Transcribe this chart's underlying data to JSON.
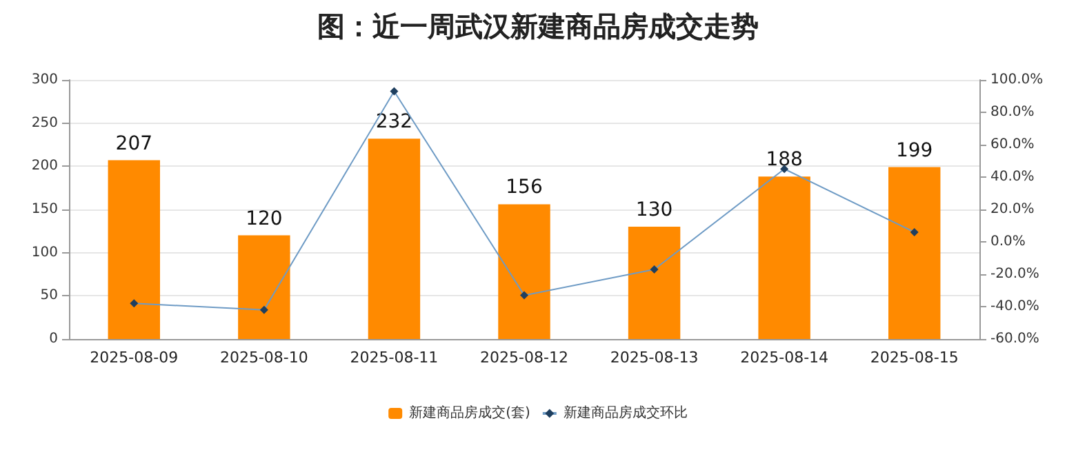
{
  "chart_data": {
    "type": "bar",
    "title": "图：近一周武汉新建商品房成交走势",
    "categories": [
      "2025-08-09",
      "2025-08-10",
      "2025-08-11",
      "2025-08-12",
      "2025-08-13",
      "2025-08-14",
      "2025-08-15"
    ],
    "series": [
      {
        "name": "新建商品房成交(套)",
        "color": "#ff8a00",
        "values": [
          207,
          120,
          232,
          156,
          130,
          188,
          199
        ],
        "data_labels": true
      },
      {
        "name": "新建商品房成交环比",
        "type": "line",
        "axis": "y2",
        "color": "#6e9bc5",
        "marker": "diamond",
        "values": [
          -38,
          -42,
          93,
          -33,
          -17,
          45,
          6
        ]
      }
    ],
    "ylim": [
      0,
      300
    ],
    "yticks": [
      0,
      50,
      100,
      150,
      200,
      250,
      300
    ],
    "y2lim": [
      -60,
      100
    ],
    "y2ticks": [
      {
        "value": -60,
        "label": "-60.0%"
      },
      {
        "value": -40,
        "label": "-40.0%"
      },
      {
        "value": -20,
        "label": "-20.0%"
      },
      {
        "value": 0,
        "label": "0.0%"
      },
      {
        "value": 20,
        "label": "20.0%"
      },
      {
        "value": 40,
        "label": "40.0%"
      },
      {
        "value": 60,
        "label": "60.0%"
      },
      {
        "value": 80,
        "label": "80.0%"
      },
      {
        "value": 100,
        "label": "100.0%"
      }
    ],
    "grid": "y",
    "legend": "bottom"
  }
}
